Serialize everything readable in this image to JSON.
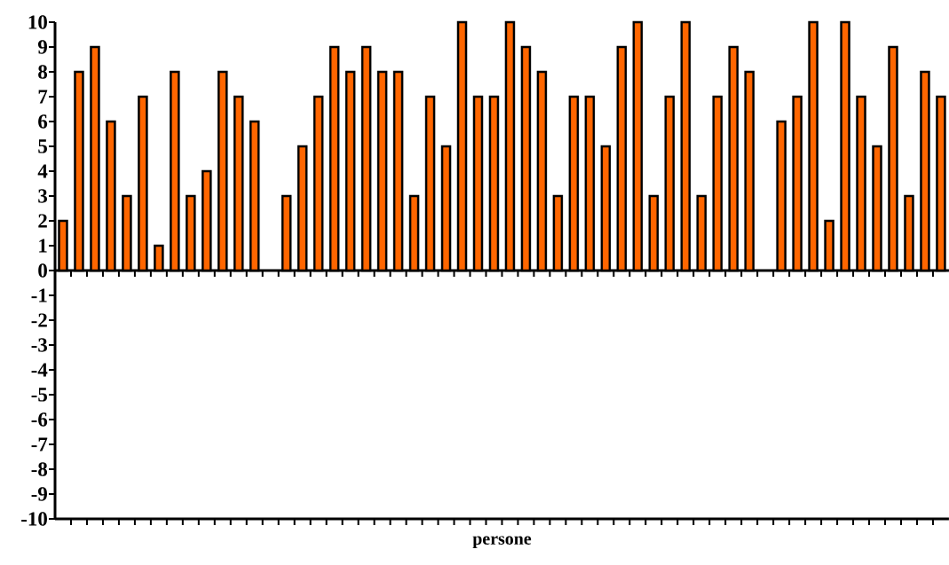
{
  "chart_data": {
    "type": "bar",
    "xlabel": "persone",
    "categories": [
      null,
      null,
      null,
      null,
      null,
      null,
      null,
      null,
      null,
      null,
      null,
      null,
      null,
      null,
      null,
      null,
      null,
      null,
      null,
      null,
      null,
      null,
      null,
      null,
      null,
      null,
      null,
      null,
      null,
      null,
      null,
      null,
      null,
      null,
      null,
      null,
      null,
      null,
      null,
      null,
      null,
      null,
      null,
      null,
      null,
      null,
      null,
      null,
      null,
      null,
      null,
      null,
      null,
      null,
      null,
      null
    ],
    "values": [
      2,
      8,
      9,
      6,
      3,
      7,
      1,
      8,
      3,
      4,
      8,
      7,
      6,
      0,
      3,
      5,
      7,
      9,
      8,
      9,
      8,
      8,
      3,
      7,
      5,
      10,
      7,
      7,
      10,
      9,
      8,
      3,
      7,
      7,
      5,
      9,
      10,
      3,
      7,
      10,
      3,
      7,
      9,
      8,
      0,
      6,
      7,
      10,
      2,
      10,
      7,
      5,
      9,
      3,
      8,
      7
    ],
    "color": "#ff6600",
    "ylim": [
      -10,
      10
    ],
    "yticks": [
      -10,
      -9,
      -8,
      -7,
      -6,
      -5,
      -4,
      -3,
      -2,
      -1,
      0,
      1,
      2,
      3,
      4,
      5,
      6,
      7,
      8,
      9,
      10
    ]
  }
}
